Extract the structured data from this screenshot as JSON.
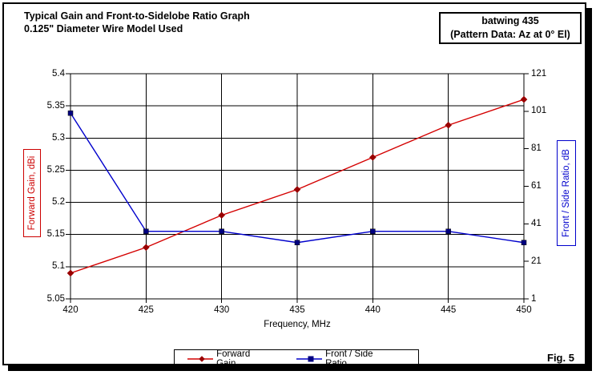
{
  "header": {
    "title_line1": "Typical Gain and Front-to-Sidelobe Ratio Graph",
    "title_line2": "0.125\" Diameter Wire Model Used",
    "annotation_line1": "batwing 435",
    "annotation_line2": "(Pattern Data: Az at 0° El)"
  },
  "figure_label": "Fig. 5",
  "colors": {
    "forward_gain_line": "#d40000",
    "forward_gain_marker": "#990000",
    "front_side_line": "#0000cc",
    "front_side_marker": "#000080",
    "grid": "#000000",
    "left_axis_label": "#cc0000",
    "right_axis_label": "#0000cc"
  },
  "chart_data": {
    "type": "line",
    "x": [
      420,
      425,
      430,
      435,
      440,
      445,
      450
    ],
    "x_tick_labels": [
      "420",
      "425",
      "430",
      "435",
      "440",
      "445",
      "450"
    ],
    "xlabel": "Frequency, MHz",
    "grid": true,
    "legend_position": "bottom",
    "left_axis": {
      "label": "Forward Gain,  dBi",
      "min": 5.05,
      "max": 5.4,
      "tick_labels": [
        "5.4",
        "5.35",
        "5.3",
        "5.25",
        "5.2",
        "5.15",
        "5.1",
        "5.05"
      ]
    },
    "right_axis": {
      "label": "Front / Side Ratio,  dB",
      "min": 1,
      "max": 121,
      "tick_labels": [
        "121",
        "101",
        "81",
        "61",
        "41",
        "21",
        "1"
      ]
    },
    "series": [
      {
        "name": "Forward Gain",
        "axis": "left",
        "marker": "diamond",
        "values": [
          5.09,
          5.13,
          5.18,
          5.22,
          5.27,
          5.32,
          5.36
        ]
      },
      {
        "name": "Front / Side Ratio",
        "axis": "right",
        "marker": "square",
        "values": [
          100,
          37,
          37,
          31,
          37,
          37,
          31
        ]
      }
    ]
  }
}
